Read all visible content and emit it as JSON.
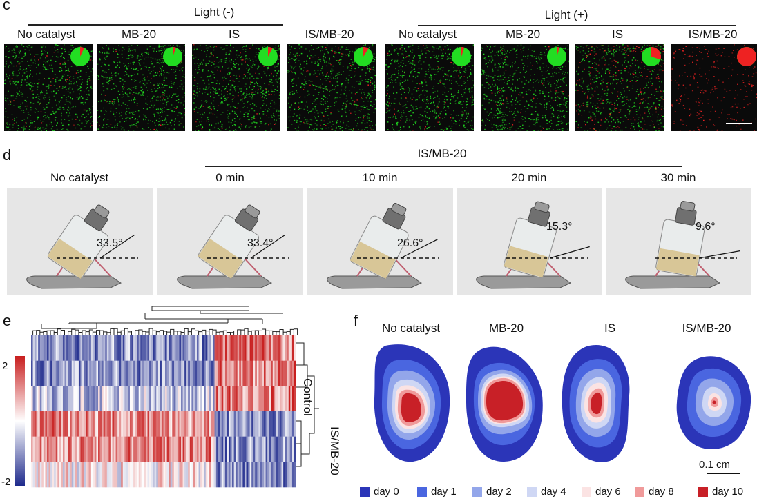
{
  "panel_c": {
    "letter": "c",
    "group_minus": "Light (-)",
    "group_plus": "Light (+)",
    "labels": [
      "No catalyst",
      "MB-20",
      "IS",
      "IS/MB-20",
      "No catalyst",
      "MB-20",
      "IS",
      "IS/MB-20"
    ],
    "live_fraction": [
      0.93,
      0.94,
      0.92,
      0.91,
      0.95,
      0.95,
      0.7,
      0.0
    ],
    "colors": {
      "live": "#22dd22",
      "dead": "#ee2222"
    }
  },
  "panel_d": {
    "letter": "d",
    "group_label": "IS/MB-20",
    "labels": [
      "No catalyst",
      "0 min",
      "10 min",
      "20 min",
      "30 min"
    ],
    "angles": [
      "33.5°",
      "33.4°",
      "26.6°",
      "15.3°",
      "9.6°"
    ]
  },
  "panel_e": {
    "letter": "e",
    "colorbar_max": "2",
    "colorbar_min": "-2",
    "row_group_1": "Control",
    "row_group_2": "IS/MB-20",
    "colors": {
      "high": "#c81e1e",
      "mid": "#ffffff",
      "low": "#1e2a8c"
    }
  },
  "panel_f": {
    "letter": "f",
    "labels": [
      "No catalyst",
      "MB-20",
      "IS",
      "IS/MB-20"
    ],
    "scale_label": "0.1 cm",
    "legend": [
      {
        "label": "day 0",
        "color": "#2b35b8"
      },
      {
        "label": "day 1",
        "color": "#4a66e0"
      },
      {
        "label": "day 2",
        "color": "#93a6ea"
      },
      {
        "label": "day 4",
        "color": "#cfd7f4"
      },
      {
        "label": "day 6",
        "color": "#fbe3e3"
      },
      {
        "label": "day 8",
        "color": "#f09a9a"
      },
      {
        "label": "day 10",
        "color": "#c82027"
      }
    ]
  }
}
